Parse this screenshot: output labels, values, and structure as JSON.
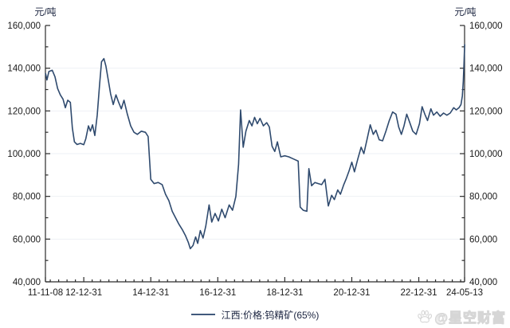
{
  "chart_data": {
    "type": "line",
    "title": "",
    "ylabel_left": "元/吨",
    "ylabel_right": "元/吨",
    "ylim": [
      40000,
      160000
    ],
    "y_major_step": 20000,
    "y_minor_step": 10000,
    "grid": "faint-horizontal",
    "legend_position": "bottom-center",
    "x_range_years": [
      2011.855,
      2024.367
    ],
    "x_minor_step_years": 0.25,
    "x_ticks": [
      {
        "label": "11-11-08",
        "year": 2011.855
      },
      {
        "label": "12-12-31",
        "year": 2013.0
      },
      {
        "label": "14-12-31",
        "year": 2015.0
      },
      {
        "label": "16-12-31",
        "year": 2017.0
      },
      {
        "label": "18-12-31",
        "year": 2019.0
      },
      {
        "label": "20-12-31",
        "year": 2021.0
      },
      {
        "label": "22-12-31",
        "year": 2023.0
      },
      {
        "label": "24-05-13",
        "year": 2024.367
      }
    ],
    "series": [
      {
        "name": "江西:价格:钨精矿(65%)",
        "color": "#2F4A6E",
        "points": [
          [
            2011.86,
            137500
          ],
          [
            2011.9,
            134500
          ],
          [
            2011.96,
            138500
          ],
          [
            2012.06,
            139000
          ],
          [
            2012.14,
            136000
          ],
          [
            2012.22,
            130500
          ],
          [
            2012.3,
            127500
          ],
          [
            2012.38,
            125500
          ],
          [
            2012.45,
            121500
          ],
          [
            2012.52,
            125000
          ],
          [
            2012.6,
            124000
          ],
          [
            2012.66,
            112000
          ],
          [
            2012.72,
            105500
          ],
          [
            2012.8,
            104300
          ],
          [
            2012.9,
            104800
          ],
          [
            2013.0,
            104200
          ],
          [
            2013.06,
            107000
          ],
          [
            2013.14,
            113000
          ],
          [
            2013.2,
            110500
          ],
          [
            2013.26,
            113500
          ],
          [
            2013.33,
            108500
          ],
          [
            2013.4,
            118000
          ],
          [
            2013.47,
            132000
          ],
          [
            2013.53,
            143000
          ],
          [
            2013.6,
            144500
          ],
          [
            2013.66,
            141000
          ],
          [
            2013.72,
            135500
          ],
          [
            2013.8,
            128000
          ],
          [
            2013.88,
            123000
          ],
          [
            2013.96,
            127500
          ],
          [
            2014.04,
            124000
          ],
          [
            2014.12,
            121000
          ],
          [
            2014.2,
            125000
          ],
          [
            2014.3,
            118500
          ],
          [
            2014.4,
            113000
          ],
          [
            2014.5,
            110000
          ],
          [
            2014.6,
            109000
          ],
          [
            2014.72,
            110500
          ],
          [
            2014.84,
            110000
          ],
          [
            2014.92,
            108000
          ],
          [
            2015.0,
            88000
          ],
          [
            2015.1,
            86000
          ],
          [
            2015.22,
            86500
          ],
          [
            2015.34,
            85500
          ],
          [
            2015.44,
            81000
          ],
          [
            2015.54,
            78000
          ],
          [
            2015.64,
            73000
          ],
          [
            2015.74,
            70000
          ],
          [
            2015.84,
            67000
          ],
          [
            2015.94,
            64500
          ],
          [
            2016.04,
            61500
          ],
          [
            2016.12,
            58500
          ],
          [
            2016.18,
            55500
          ],
          [
            2016.26,
            57000
          ],
          [
            2016.34,
            61000
          ],
          [
            2016.4,
            58000
          ],
          [
            2016.48,
            64000
          ],
          [
            2016.56,
            60500
          ],
          [
            2016.64,
            66000
          ],
          [
            2016.74,
            76000
          ],
          [
            2016.82,
            68000
          ],
          [
            2016.92,
            72000
          ],
          [
            2017.02,
            68500
          ],
          [
            2017.12,
            74000
          ],
          [
            2017.22,
            70000
          ],
          [
            2017.34,
            76000
          ],
          [
            2017.44,
            73500
          ],
          [
            2017.54,
            80000
          ],
          [
            2017.62,
            95000
          ],
          [
            2017.68,
            120500
          ],
          [
            2017.76,
            103000
          ],
          [
            2017.84,
            110500
          ],
          [
            2017.94,
            115500
          ],
          [
            2018.02,
            113000
          ],
          [
            2018.1,
            117000
          ],
          [
            2018.18,
            114000
          ],
          [
            2018.26,
            116500
          ],
          [
            2018.36,
            113000
          ],
          [
            2018.46,
            114500
          ],
          [
            2018.54,
            112500
          ],
          [
            2018.62,
            103500
          ],
          [
            2018.7,
            101000
          ],
          [
            2018.78,
            105500
          ],
          [
            2018.88,
            98500
          ],
          [
            2019.0,
            99000
          ],
          [
            2019.12,
            98500
          ],
          [
            2019.26,
            97500
          ],
          [
            2019.4,
            96500
          ],
          [
            2019.46,
            75000
          ],
          [
            2019.55,
            73500
          ],
          [
            2019.66,
            73000
          ],
          [
            2019.72,
            93000
          ],
          [
            2019.8,
            85000
          ],
          [
            2019.9,
            86500
          ],
          [
            2020.0,
            86000
          ],
          [
            2020.1,
            85500
          ],
          [
            2020.2,
            88000
          ],
          [
            2020.3,
            75500
          ],
          [
            2020.4,
            80500
          ],
          [
            2020.48,
            78500
          ],
          [
            2020.58,
            83000
          ],
          [
            2020.66,
            81000
          ],
          [
            2020.76,
            85500
          ],
          [
            2020.84,
            88500
          ],
          [
            2020.92,
            92000
          ],
          [
            2021.0,
            96000
          ],
          [
            2021.08,
            91500
          ],
          [
            2021.18,
            97500
          ],
          [
            2021.28,
            103000
          ],
          [
            2021.36,
            100000
          ],
          [
            2021.46,
            107000
          ],
          [
            2021.55,
            113500
          ],
          [
            2021.64,
            109000
          ],
          [
            2021.72,
            111000
          ],
          [
            2021.82,
            106500
          ],
          [
            2021.92,
            106000
          ],
          [
            2022.02,
            110500
          ],
          [
            2022.12,
            115500
          ],
          [
            2022.22,
            119500
          ],
          [
            2022.32,
            118500
          ],
          [
            2022.4,
            112500
          ],
          [
            2022.48,
            109000
          ],
          [
            2022.56,
            113000
          ],
          [
            2022.64,
            118500
          ],
          [
            2022.72,
            115000
          ],
          [
            2022.82,
            110500
          ],
          [
            2022.92,
            109000
          ],
          [
            2023.02,
            114000
          ],
          [
            2023.1,
            122000
          ],
          [
            2023.18,
            118500
          ],
          [
            2023.26,
            115500
          ],
          [
            2023.36,
            121000
          ],
          [
            2023.44,
            118000
          ],
          [
            2023.54,
            119500
          ],
          [
            2023.64,
            117500
          ],
          [
            2023.74,
            119000
          ],
          [
            2023.84,
            118000
          ],
          [
            2023.94,
            119000
          ],
          [
            2024.04,
            121500
          ],
          [
            2024.12,
            120500
          ],
          [
            2024.2,
            121500
          ],
          [
            2024.26,
            123000
          ],
          [
            2024.3,
            127000
          ],
          [
            2024.33,
            134000
          ],
          [
            2024.35,
            142500
          ],
          [
            2024.37,
            151000
          ]
        ]
      }
    ]
  },
  "colors": {
    "axis": "#2b2b2b",
    "tick_text": "#1a1a1a",
    "grid": "#eef1f5",
    "line": "#2F4A6E"
  },
  "watermark": {
    "text": "@星空财富",
    "icon": "baidu-paw"
  }
}
